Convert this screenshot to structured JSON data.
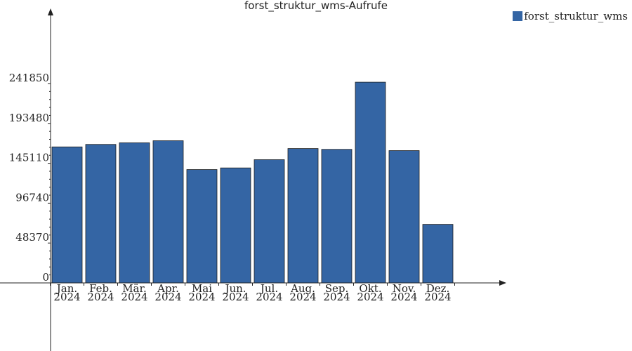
{
  "chart_data": {
    "type": "bar",
    "title": "forst_struktur_wms-Aufrufe",
    "categories": [
      [
        "Jan.",
        "2024"
      ],
      [
        "Feb.",
        "2024"
      ],
      [
        "Mär.",
        "2024"
      ],
      [
        "Apr.",
        "2024"
      ],
      [
        "Mai",
        "2024"
      ],
      [
        "Jun.",
        "2024"
      ],
      [
        "Jul.",
        "2024"
      ],
      [
        "Aug.",
        "2024"
      ],
      [
        "Sep.",
        "2024"
      ],
      [
        "Okt.",
        "2024"
      ],
      [
        "Nov.",
        "2024"
      ],
      [
        "Dez.",
        "2024"
      ]
    ],
    "series": [
      {
        "name": "forst_struktur_wms",
        "color": "#3465a4",
        "values": [
          165000,
          168000,
          170000,
          172500,
          137500,
          139500,
          149500,
          163000,
          162000,
          243500,
          160500,
          71000
        ]
      }
    ],
    "yticks": [
      0,
      48370,
      96740,
      145110,
      193480,
      241850
    ],
    "ylim": [
      0,
      241850
    ],
    "xlabel": "",
    "ylabel": "",
    "legend_position": "top-right",
    "grid": false
  }
}
